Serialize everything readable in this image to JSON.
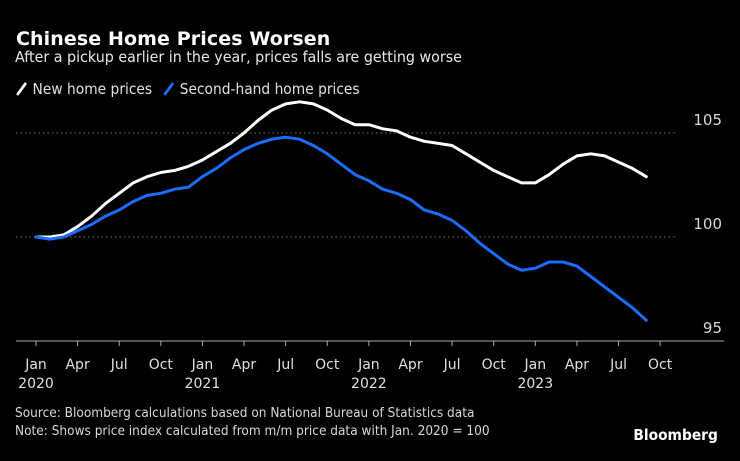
{
  "header": {
    "title": "Chinese Home Prices Worsen",
    "subtitle": "After a pickup earlier in the year, prices falls are getting worse"
  },
  "legend": [
    {
      "label": "New home prices",
      "color": "#ffffff"
    },
    {
      "label": "Second-hand home prices",
      "color": "#1a6dff"
    }
  ],
  "footer": {
    "source": "Source: Bloomberg calculations based on National Bureau of Statistics data",
    "note": "Note: Shows price index calculated from m/m price data with Jan. 2020 = 100",
    "brand": "Bloomberg"
  },
  "chart_data": {
    "type": "line",
    "title": "Chinese Home Prices Worsen",
    "subtitle": "After a pickup earlier in the year, prices falls are getting worse",
    "xlabel": "",
    "ylabel": "",
    "x_start": "2020-01",
    "x_end": "2023-09",
    "xlim_months": [
      0,
      45
    ],
    "ylim": [
      95,
      107
    ],
    "y_ticks": [
      95,
      100,
      105
    ],
    "y_axis_position": "right",
    "grid": "horizontal dotted",
    "legend_position": "top-left",
    "x_ticks": [
      {
        "month": 0,
        "label": "Jan",
        "year": "2020"
      },
      {
        "month": 3,
        "label": "Apr",
        "year": ""
      },
      {
        "month": 6,
        "label": "Jul",
        "year": ""
      },
      {
        "month": 9,
        "label": "Oct",
        "year": ""
      },
      {
        "month": 12,
        "label": "Jan",
        "year": "2021"
      },
      {
        "month": 15,
        "label": "Apr",
        "year": ""
      },
      {
        "month": 18,
        "label": "Jul",
        "year": ""
      },
      {
        "month": 21,
        "label": "Oct",
        "year": ""
      },
      {
        "month": 24,
        "label": "Jan",
        "year": "2022"
      },
      {
        "month": 27,
        "label": "Apr",
        "year": ""
      },
      {
        "month": 30,
        "label": "Jul",
        "year": ""
      },
      {
        "month": 33,
        "label": "Oct",
        "year": ""
      },
      {
        "month": 36,
        "label": "Jan",
        "year": "2023"
      },
      {
        "month": 39,
        "label": "Apr",
        "year": ""
      },
      {
        "month": 42,
        "label": "Jul",
        "year": ""
      },
      {
        "month": 45,
        "label": "Oct",
        "year": ""
      }
    ],
    "series": [
      {
        "name": "New home prices",
        "color": "#ffffff",
        "values": [
          100.0,
          100.0,
          100.1,
          100.5,
          101.0,
          101.6,
          102.1,
          102.6,
          102.9,
          103.1,
          103.2,
          103.4,
          103.7,
          104.1,
          104.5,
          105.0,
          105.6,
          106.1,
          106.4,
          106.5,
          106.4,
          106.1,
          105.7,
          105.4,
          105.4,
          105.2,
          105.1,
          104.8,
          104.6,
          104.5,
          104.4,
          104.0,
          103.6,
          103.2,
          102.9,
          102.6,
          102.6,
          103.0,
          103.5,
          103.9,
          104.0,
          103.9,
          103.6,
          103.3,
          102.9
        ]
      },
      {
        "name": "Second-hand home prices",
        "color": "#1a6dff",
        "values": [
          100.0,
          99.9,
          100.0,
          100.3,
          100.6,
          101.0,
          101.3,
          101.7,
          102.0,
          102.1,
          102.3,
          102.4,
          102.9,
          103.3,
          103.8,
          104.2,
          104.5,
          104.7,
          104.8,
          104.7,
          104.4,
          104.0,
          103.5,
          103.0,
          102.7,
          102.3,
          102.1,
          101.8,
          101.3,
          101.1,
          100.8,
          100.3,
          99.7,
          99.2,
          98.7,
          98.4,
          98.5,
          98.8,
          98.8,
          98.6,
          98.1,
          97.6,
          97.1,
          96.6,
          96.0
        ]
      }
    ]
  }
}
